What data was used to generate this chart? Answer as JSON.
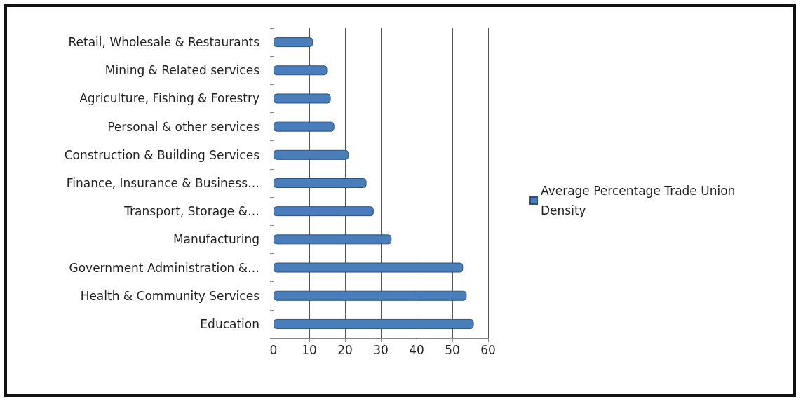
{
  "chart_data": {
    "type": "bar",
    "orientation": "horizontal",
    "categories": [
      "Retail, Wholesale & Restaurants",
      "Mining & Related services",
      "Agriculture, Fishing & Forestry",
      "Personal & other services",
      "Construction & Building Services",
      "Finance, Insurance & Business…",
      "Transport, Storage &…",
      "Manufacturing",
      "Government Administration &…",
      "Health & Community Services",
      "Education"
    ],
    "series": [
      {
        "name": "Average Percentage Trade Union Density",
        "color": "#4a7ebb",
        "values": [
          11,
          15,
          16,
          17,
          21,
          26,
          28,
          33,
          53,
          54,
          56
        ]
      }
    ],
    "xlim": [
      0,
      60
    ],
    "xticks": [
      0,
      10,
      20,
      30,
      40,
      50,
      60
    ],
    "grid": "x",
    "legend": "right"
  }
}
